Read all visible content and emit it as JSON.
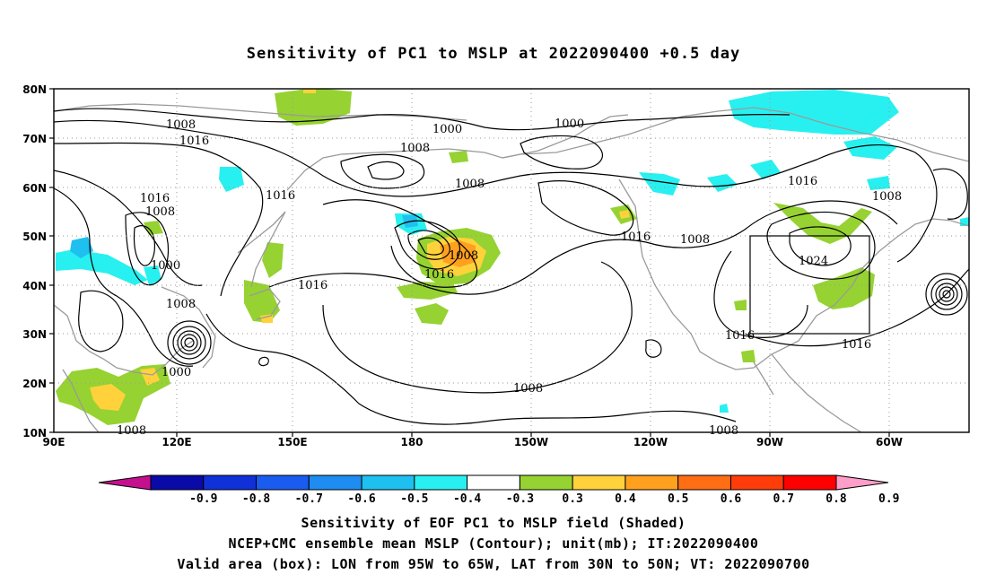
{
  "title": "Sensitivity of PC1 to MSLP at 2022090400 +0.5 day",
  "lat_labels": [
    "80N",
    "70N",
    "60N",
    "50N",
    "40N",
    "30N",
    "20N",
    "10N"
  ],
  "lon_labels": [
    "90E",
    "120E",
    "150E",
    "180",
    "150W",
    "120W",
    "90W",
    "60W"
  ],
  "colorbar": {
    "ticks": [
      "-0.9",
      "-0.8",
      "-0.7",
      "-0.6",
      "-0.5",
      "-0.4",
      "-0.3",
      "0.3",
      "0.4",
      "0.5",
      "0.6",
      "0.7",
      "0.8",
      "0.9"
    ],
    "colors": [
      "#c4108f",
      "#0a0aa8",
      "#1030d8",
      "#1a5cf0",
      "#1e8cf0",
      "#1ec0f0",
      "#28f0f0",
      "#ffffff",
      "#96d232",
      "#ffd23c",
      "#ffa01e",
      "#ff6e14",
      "#ff3c0a",
      "#ff0000",
      "#ff9ec8"
    ]
  },
  "contour_labels": [
    "1000",
    "1008",
    "1016",
    "1024"
  ],
  "map_labels": [
    {
      "text": "1008"
    },
    {
      "text": "1016"
    },
    {
      "text": "1000"
    },
    {
      "text": "1008"
    },
    {
      "text": "1000"
    },
    {
      "text": "1016"
    },
    {
      "text": "1016"
    },
    {
      "text": "1008"
    },
    {
      "text": "1008"
    },
    {
      "text": "1016"
    },
    {
      "text": "1000"
    },
    {
      "text": "1008"
    },
    {
      "text": "1000"
    },
    {
      "text": "1016"
    },
    {
      "text": "1008"
    },
    {
      "text": "1016"
    },
    {
      "text": "1008"
    },
    {
      "text": "1024"
    },
    {
      "text": "1016"
    },
    {
      "text": "1016"
    },
    {
      "text": "1016"
    },
    {
      "text": "1008"
    },
    {
      "text": "1008"
    }
  ],
  "valid_box": {
    "lon_from": "95W",
    "lon_to": "65W",
    "lat_from": "30N",
    "lat_to": "50N"
  },
  "captions": {
    "line1": "Sensitivity of EOF PC1 to MSLP field (Shaded)",
    "line2": "NCEP+CMC ensemble mean MSLP (Contour); unit(mb); IT:2022090400",
    "line3": "Valid area (box): LON from 95W to 65W, LAT from 30N to 50N; VT: 2022090700"
  }
}
